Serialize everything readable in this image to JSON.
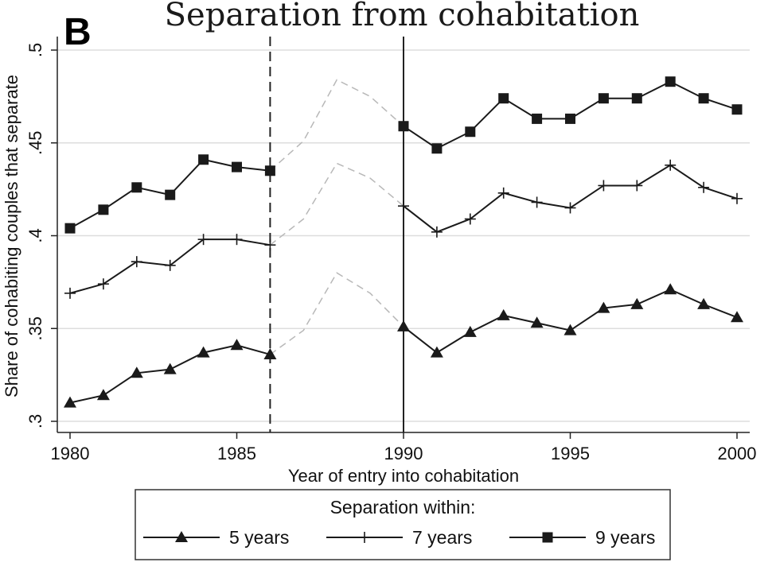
{
  "panel_letter": "B",
  "chart_data": {
    "type": "line",
    "title": "Separation from cohabitation",
    "xlabel": "Year of entry into cohabitation",
    "ylabel": "Share of cohabiting couples that separate",
    "xlim": [
      1980,
      2000
    ],
    "ylim": [
      0.3,
      0.5
    ],
    "x_ticks": [
      1980,
      1985,
      1990,
      1995,
      2000
    ],
    "x_tick_labels": [
      "1980",
      "1985",
      "1990",
      "1995",
      "2000"
    ],
    "y_ticks": [
      0.3,
      0.35,
      0.4,
      0.45,
      0.5
    ],
    "y_tick_labels": [
      ".3",
      ".35",
      ".4",
      ".45",
      ".5"
    ],
    "grid": "horizontal",
    "reference_lines": [
      {
        "x": 1986,
        "style": "dashed"
      },
      {
        "x": 1990,
        "style": "solid"
      }
    ],
    "gap_style": "dashed light gray connector",
    "x": [
      1980,
      1981,
      1982,
      1983,
      1984,
      1985,
      1986,
      1987,
      1988,
      1989,
      1990,
      1991,
      1992,
      1993,
      1994,
      1995,
      1996,
      1997,
      1998,
      1999,
      2000
    ],
    "series": [
      {
        "name": "5 years",
        "marker": "triangle",
        "values": [
          0.31,
          0.314,
          0.326,
          0.328,
          0.337,
          0.341,
          0.336,
          0.349,
          0.38,
          0.369,
          0.351,
          0.337,
          0.348,
          0.357,
          0.353,
          0.349,
          0.361,
          0.363,
          0.371,
          0.363,
          0.356
        ]
      },
      {
        "name": "7 years",
        "marker": "plus",
        "values": [
          0.369,
          0.374,
          0.386,
          0.384,
          0.398,
          0.398,
          0.395,
          0.409,
          0.439,
          0.431,
          0.416,
          0.402,
          0.409,
          0.423,
          0.418,
          0.415,
          0.427,
          0.427,
          0.438,
          0.426,
          0.42
        ]
      },
      {
        "name": "9 years",
        "marker": "square",
        "values": [
          0.404,
          0.414,
          0.426,
          0.422,
          0.441,
          0.437,
          0.435,
          0.451,
          0.484,
          0.475,
          0.459,
          0.447,
          0.456,
          0.474,
          0.463,
          0.463,
          0.474,
          0.474,
          0.483,
          0.474,
          0.468
        ]
      }
    ],
    "legend": {
      "title": "Separation within:",
      "position": "bottom",
      "entries": [
        "5 years",
        "7 years",
        "9 years"
      ]
    }
  },
  "colors": {
    "line": "#1a1a1a",
    "gap_line": "#b8b8b8",
    "grid": "#dddddd",
    "axis": "#222222"
  }
}
